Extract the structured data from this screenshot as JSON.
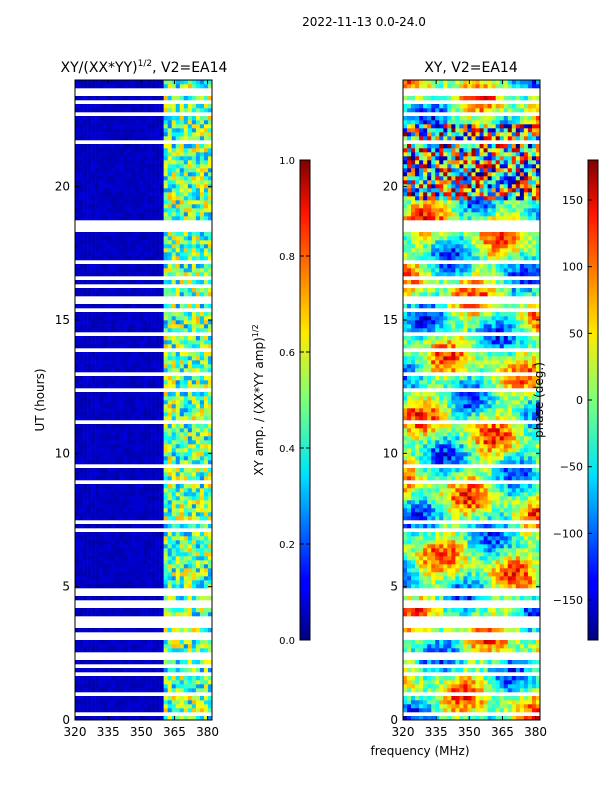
{
  "figure": {
    "suptitle": "2022-11-13 0.0-24.0",
    "xlabel": "frequency (MHz)"
  },
  "chart_data": [
    {
      "type": "heatmap",
      "title_main": "XY/(XX*YY)",
      "title_sup": "1/2",
      "title_rest": ", V2=EA14",
      "xlabel": "frequency (MHz)",
      "ylabel": "UT (hours)",
      "xlim": [
        320,
        382
      ],
      "ylim": [
        0,
        24
      ],
      "xticks": [
        320,
        335,
        350,
        365,
        380
      ],
      "yticks": [
        0,
        5,
        10,
        15,
        20
      ],
      "colorbar": {
        "label_main": "XY amp. / (XX*YY amp)",
        "label_sup": "1/2",
        "range": [
          0.0,
          1.0
        ],
        "ticks": [
          "0.0",
          "0.2",
          "0.4",
          "0.6",
          "0.8",
          "1.0"
        ],
        "colormap": "jet"
      },
      "notes": "Mostly low (~0.05) amplitude; elevated values (0.3-0.8) concentrated near 360-380 MHz; white rows indicate flagged/missing data."
    },
    {
      "type": "heatmap",
      "title": "XY, V2=EA14",
      "xlabel": "frequency (MHz)",
      "xlim": [
        320,
        382
      ],
      "ylim": [
        0,
        24
      ],
      "xticks": [
        320,
        335,
        350,
        365,
        380
      ],
      "yticks": [
        0,
        5,
        10,
        15,
        20
      ],
      "colorbar": {
        "label": "phase (deg.)",
        "range": [
          -180,
          180
        ],
        "ticks": [
          "150",
          "100",
          "50",
          "0",
          "−50",
          "−100",
          "−150"
        ],
        "tick_values": [
          150,
          100,
          50,
          0,
          -50,
          -100,
          -150
        ],
        "colormap": "jet"
      },
      "notes": "Phase varies across full range; noisy random phase between ~19.5 and 22.5 h; white rows indicate flagged data."
    }
  ]
}
